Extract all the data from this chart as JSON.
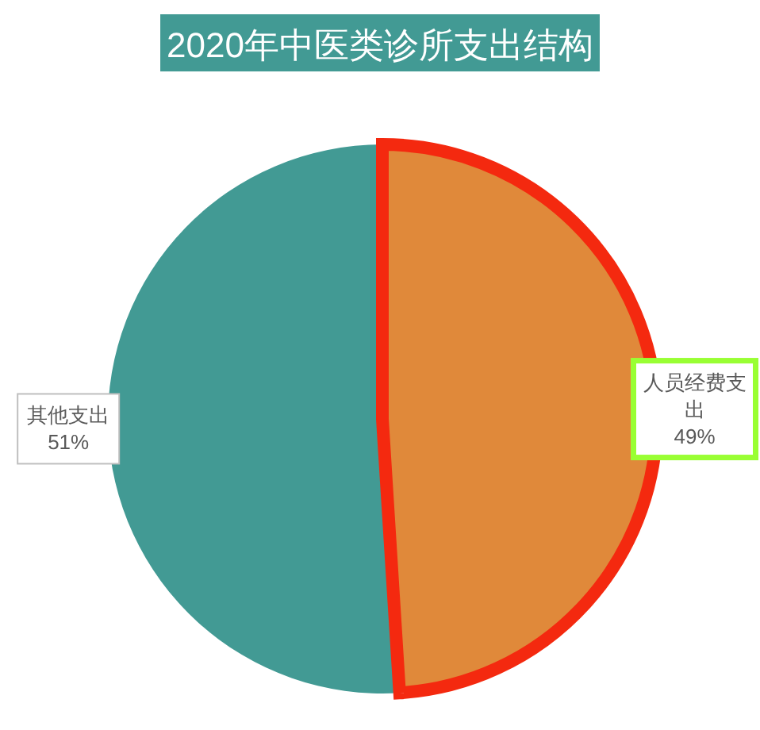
{
  "chart_data": {
    "type": "pie",
    "title": "2020年中医类诊所支出结构",
    "categories": [
      "人员经费支出",
      "其他支出"
    ],
    "values": [
      49,
      51
    ],
    "colors": [
      "#e0893a",
      "#429a94"
    ],
    "value_labels": [
      "49%",
      "51%"
    ]
  }
}
